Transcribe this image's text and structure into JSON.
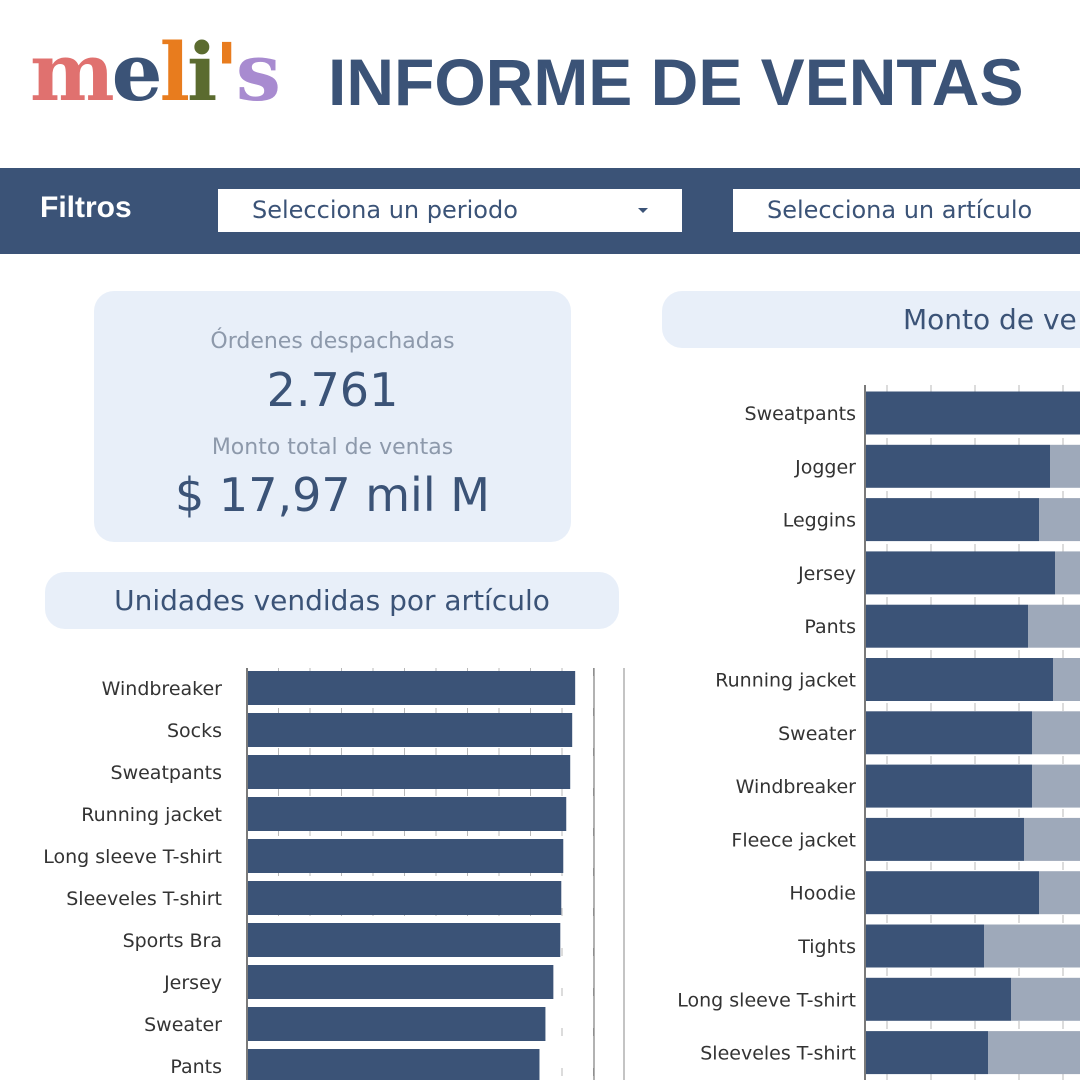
{
  "header": {
    "logo_letters": [
      {
        "ch": "m",
        "color": "#e0716f"
      },
      {
        "ch": "e",
        "color": "#3b5377"
      },
      {
        "ch": "l",
        "color": "#e87c1e"
      },
      {
        "ch": "i",
        "color": "#5b6b2f"
      },
      {
        "ch": "'",
        "color": "#e87c1e"
      },
      {
        "ch": "s",
        "color": "#a88bd0"
      }
    ],
    "logo_text": "meli's",
    "title": "INFORME DE VENTAS"
  },
  "filters": {
    "label": "Filtros",
    "periodo_placeholder": "Selecciona un periodo",
    "articulo_placeholder": "Selecciona un artículo"
  },
  "kpis": {
    "orders_label": "Órdenes despachadas",
    "orders_value": "2.761",
    "amount_label": "Monto total de ventas",
    "amount_value": "$ 17,97 mil M"
  },
  "colors": {
    "primary": "#3b5377",
    "secondary": "#9ea9ba",
    "card_bg": "#e8eff9",
    "grid": "#b8b8b8"
  },
  "chart_data": [
    {
      "type": "bar",
      "orientation": "horizontal",
      "title": "Unidades vendidas por artículo",
      "categories": [
        "Windbreaker",
        "Socks",
        "Sweatpants",
        "Running jacket",
        "Long sleeve T-shirt",
        "Sleeveles T-shirt",
        "Sports Bra",
        "Jersey",
        "Sweater",
        "Pants"
      ],
      "values": [
        330,
        327,
        325,
        321,
        318,
        316,
        315,
        308,
        300,
        294
      ],
      "xlim": [
        0,
        350
      ],
      "grid": true
    },
    {
      "type": "bar",
      "orientation": "horizontal",
      "stacked": true,
      "title": "Monto de ve",
      "categories": [
        "Sweatpants",
        "Jogger",
        "Leggins",
        "Jersey",
        "Pants",
        "Running jacket",
        "Sweater",
        "Windbreaker",
        "Fleece jacket",
        "Hoodie",
        "Tights",
        "Long sleeve T-shirt",
        "Sleeveles T-shirt"
      ],
      "series": [
        {
          "values": [
            240,
            184,
            173,
            189,
            162,
            187,
            166,
            166,
            158,
            173,
            118,
            145,
            122
          ]
        },
        {
          "values": [
            0,
            60,
            60,
            60,
            60,
            60,
            60,
            60,
            60,
            60,
            100,
            80,
            100
          ]
        }
      ],
      "grid": true
    }
  ]
}
